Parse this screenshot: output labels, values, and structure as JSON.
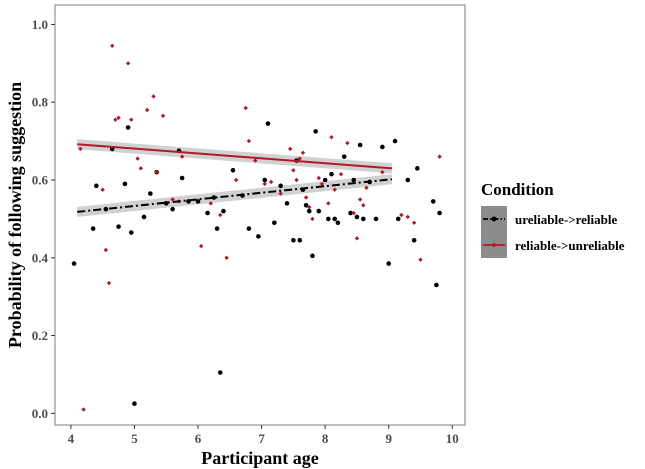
{
  "chart_data": {
    "type": "scatter",
    "xlabel": "Participant age",
    "ylabel": "Probability of following suggestion",
    "xlim": [
      3.75,
      10.2
    ],
    "ylim": [
      -0.03,
      1.05
    ],
    "xticks": [
      "4",
      "5",
      "6",
      "7",
      "8",
      "9",
      "10"
    ],
    "yticks": [
      "0.0",
      "0.2",
      "0.4",
      "0.6",
      "0.8",
      "1.0"
    ],
    "grid": false,
    "legend": {
      "title": "Condition",
      "position": "right"
    },
    "series": [
      {
        "name": "ureliable->reliable",
        "color": "#000000",
        "line_style": "dashdot",
        "trend": {
          "x": [
            4.1,
            9.05
          ],
          "y": [
            0.518,
            0.602
          ],
          "ci": 0.013
        },
        "points": [
          [
            4.05,
            0.385
          ],
          [
            4.35,
            0.475
          ],
          [
            4.4,
            0.585
          ],
          [
            4.55,
            0.525
          ],
          [
            4.65,
            0.68
          ],
          [
            4.75,
            0.48
          ],
          [
            4.85,
            0.59
          ],
          [
            4.9,
            0.735
          ],
          [
            4.95,
            0.465
          ],
          [
            5.0,
            0.025
          ],
          [
            5.15,
            0.505
          ],
          [
            5.25,
            0.565
          ],
          [
            5.35,
            0.62
          ],
          [
            5.5,
            0.54
          ],
          [
            5.6,
            0.525
          ],
          [
            5.7,
            0.675
          ],
          [
            5.75,
            0.605
          ],
          [
            5.85,
            0.545
          ],
          [
            6.0,
            0.545
          ],
          [
            6.15,
            0.515
          ],
          [
            6.25,
            0.555
          ],
          [
            6.3,
            0.475
          ],
          [
            6.35,
            0.105
          ],
          [
            6.4,
            0.52
          ],
          [
            6.55,
            0.625
          ],
          [
            6.7,
            0.56
          ],
          [
            6.8,
            0.475
          ],
          [
            6.95,
            0.455
          ],
          [
            7.05,
            0.6
          ],
          [
            7.1,
            0.745
          ],
          [
            7.2,
            0.49
          ],
          [
            7.3,
            0.585
          ],
          [
            7.4,
            0.54
          ],
          [
            7.5,
            0.445
          ],
          [
            7.55,
            0.65
          ],
          [
            7.6,
            0.445
          ],
          [
            7.65,
            0.575
          ],
          [
            7.7,
            0.535
          ],
          [
            7.75,
            0.52
          ],
          [
            7.8,
            0.405
          ],
          [
            7.85,
            0.725
          ],
          [
            7.9,
            0.52
          ],
          [
            8.0,
            0.6
          ],
          [
            8.05,
            0.5
          ],
          [
            8.1,
            0.615
          ],
          [
            8.15,
            0.5
          ],
          [
            8.2,
            0.49
          ],
          [
            8.3,
            0.66
          ],
          [
            8.4,
            0.515
          ],
          [
            8.45,
            0.6
          ],
          [
            8.5,
            0.505
          ],
          [
            8.55,
            0.69
          ],
          [
            8.6,
            0.5
          ],
          [
            8.7,
            0.595
          ],
          [
            8.8,
            0.5
          ],
          [
            8.9,
            0.685
          ],
          [
            9.0,
            0.385
          ],
          [
            9.1,
            0.7
          ],
          [
            9.15,
            0.5
          ],
          [
            9.3,
            0.6
          ],
          [
            9.4,
            0.445
          ],
          [
            9.45,
            0.63
          ],
          [
            9.7,
            0.545
          ],
          [
            9.75,
            0.33
          ],
          [
            9.8,
            0.515
          ]
        ]
      },
      {
        "name": "reliable->unreliable",
        "color": "#b2182b",
        "line_style": "solid",
        "trend": {
          "x": [
            4.1,
            9.05
          ],
          "y": [
            0.692,
            0.63
          ],
          "ci": 0.013
        },
        "points": [
          [
            4.15,
            0.68
          ],
          [
            4.2,
            0.01
          ],
          [
            4.5,
            0.575
          ],
          [
            4.55,
            0.42
          ],
          [
            4.6,
            0.335
          ],
          [
            4.65,
            0.945
          ],
          [
            4.7,
            0.755
          ],
          [
            4.75,
            0.76
          ],
          [
            4.9,
            0.9
          ],
          [
            4.95,
            0.755
          ],
          [
            5.05,
            0.655
          ],
          [
            5.1,
            0.63
          ],
          [
            5.2,
            0.78
          ],
          [
            5.3,
            0.815
          ],
          [
            5.35,
            0.62
          ],
          [
            5.45,
            0.765
          ],
          [
            5.6,
            0.55
          ],
          [
            5.7,
            0.545
          ],
          [
            5.75,
            0.66
          ],
          [
            6.05,
            0.43
          ],
          [
            6.2,
            0.54
          ],
          [
            6.35,
            0.51
          ],
          [
            6.45,
            0.4
          ],
          [
            6.6,
            0.6
          ],
          [
            6.75,
            0.785
          ],
          [
            6.8,
            0.7
          ],
          [
            6.9,
            0.65
          ],
          [
            7.05,
            0.59
          ],
          [
            7.15,
            0.595
          ],
          [
            7.3,
            0.565
          ],
          [
            7.45,
            0.68
          ],
          [
            7.5,
            0.625
          ],
          [
            7.55,
            0.6
          ],
          [
            7.6,
            0.655
          ],
          [
            7.65,
            0.67
          ],
          [
            7.7,
            0.555
          ],
          [
            7.75,
            0.53
          ],
          [
            7.8,
            0.5
          ],
          [
            7.9,
            0.605
          ],
          [
            7.95,
            0.59
          ],
          [
            8.05,
            0.54
          ],
          [
            8.1,
            0.71
          ],
          [
            8.15,
            0.575
          ],
          [
            8.25,
            0.615
          ],
          [
            8.35,
            0.695
          ],
          [
            8.45,
            0.515
          ],
          [
            8.5,
            0.45
          ],
          [
            8.55,
            0.55
          ],
          [
            8.6,
            0.535
          ],
          [
            8.65,
            0.58
          ],
          [
            8.9,
            0.62
          ],
          [
            9.2,
            0.51
          ],
          [
            9.3,
            0.505
          ],
          [
            9.4,
            0.49
          ],
          [
            9.5,
            0.395
          ],
          [
            9.8,
            0.66
          ]
        ]
      }
    ]
  }
}
